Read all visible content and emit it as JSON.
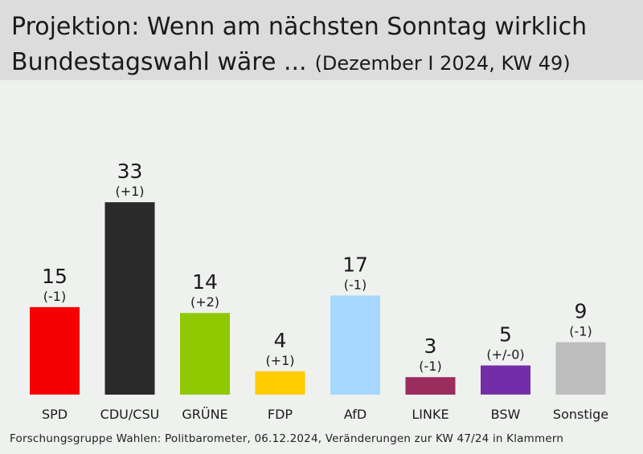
{
  "title": {
    "line1": "Projektion: Wenn am nächsten Sonntag wirklich",
    "line2": "Bundestagswahl wäre ...",
    "subtitle": "(Dezember I 2024, KW 49)"
  },
  "source": "Forschungsgruppe Wahlen: Politbarometer, 06.12.2024, Veränderungen zur KW 47/24 in Klammern",
  "chart_data": {
    "type": "bar",
    "title": "Projektion: Wenn am nächsten Sonntag wirklich Bundestagswahl wäre ... (Dezember I 2024, KW 49)",
    "categories": [
      "SPD",
      "CDU/CSU",
      "GRÜNE",
      "FDP",
      "AfD",
      "LINKE",
      "BSW",
      "Sonstige"
    ],
    "values": [
      15,
      33,
      14,
      4,
      17,
      3,
      5,
      9
    ],
    "value_labels": [
      "15",
      "33",
      "14",
      "4",
      "17",
      "3",
      "5",
      "9"
    ],
    "changes": [
      "(-1)",
      "(+1)",
      "(+2)",
      "(+1)",
      "(-1)",
      "(-1)",
      "(+/-0)",
      "(-1)"
    ],
    "colors": [
      "#f50000",
      "#2a2a2a",
      "#8fc800",
      "#ffcc00",
      "#a7d8ff",
      "#9b2c5e",
      "#722ea8",
      "#bdbdbd"
    ],
    "xlabel": "",
    "ylabel": "",
    "grid": false
  }
}
